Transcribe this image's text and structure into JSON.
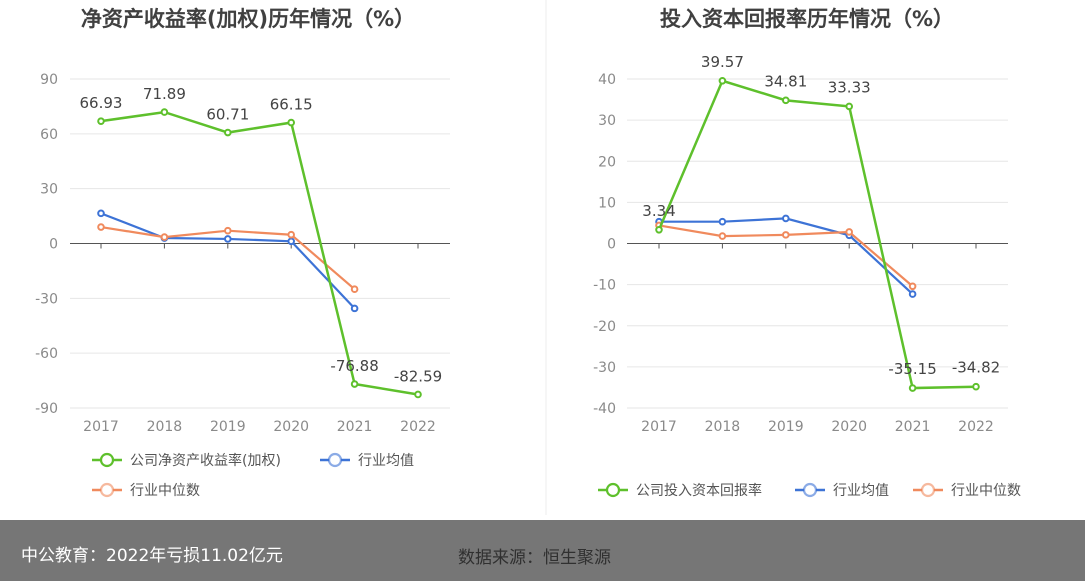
{
  "chart_data": [
    {
      "type": "line",
      "title": "净资产收益率(加权)历年情况（%）",
      "categories": [
        "2017",
        "2018",
        "2019",
        "2020",
        "2021",
        "2022"
      ],
      "ylim": [
        -90,
        90
      ],
      "yticks": [
        90,
        60,
        30,
        0,
        -30,
        -60,
        -90
      ],
      "grid": true,
      "legend_position": "bottom-left",
      "series": [
        {
          "name": "公司净资产收益率(加权)",
          "color": "#5ec02c",
          "values": [
            66.93,
            71.89,
            60.71,
            66.15,
            -76.88,
            -82.59
          ],
          "labels": [
            "66.93",
            "71.89",
            "60.71",
            "66.15",
            "-76.88",
            "-82.59"
          ]
        },
        {
          "name": "行业均值",
          "color": "#3d73d6",
          "values": [
            16.5,
            3.0,
            2.5,
            1.2,
            -35.5,
            null
          ]
        },
        {
          "name": "行业中位数",
          "color": "#f08a5d",
          "values": [
            9.0,
            3.5,
            7.0,
            4.8,
            -25.0,
            null
          ]
        }
      ]
    },
    {
      "type": "line",
      "title": "投入资本回报率历年情况（%）",
      "categories": [
        "2017",
        "2018",
        "2019",
        "2020",
        "2021",
        "2022"
      ],
      "ylim": [
        -40,
        40
      ],
      "yticks": [
        40,
        30,
        20,
        10,
        0,
        -10,
        -20,
        -30,
        -40
      ],
      "grid": true,
      "legend_position": "bottom",
      "series": [
        {
          "name": "公司投入资本回报率",
          "color": "#5ec02c",
          "values": [
            3.34,
            39.57,
            34.81,
            33.33,
            -35.15,
            -34.82
          ],
          "labels": [
            "3.34",
            "39.57",
            "34.81",
            "33.33",
            "-35.15",
            "-34.82"
          ]
        },
        {
          "name": "行业均值",
          "color": "#3d73d6",
          "values": [
            5.3,
            5.3,
            6.1,
            2.0,
            -12.3,
            null
          ]
        },
        {
          "name": "行业中位数",
          "color": "#f08a5d",
          "values": [
            4.4,
            1.8,
            2.1,
            2.8,
            -10.4,
            null
          ]
        }
      ]
    }
  ],
  "footer": {
    "left_text": "中公教育：2022年亏损11.02亿元",
    "right_text": "数据来源：恒生聚源"
  }
}
